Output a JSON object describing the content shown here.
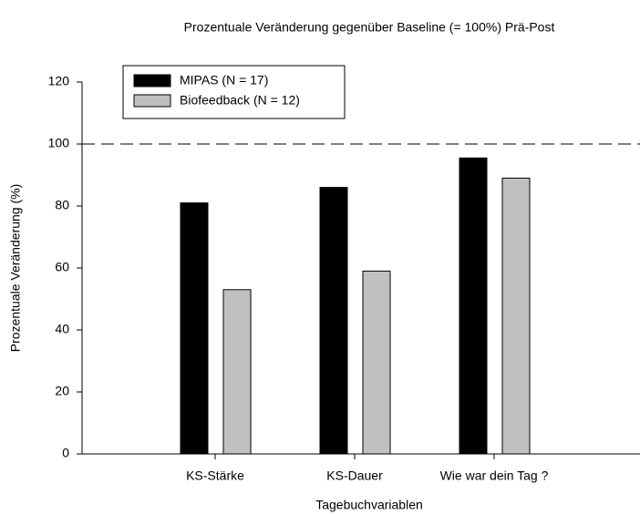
{
  "chart_data": {
    "type": "bar",
    "title": "Prozentuale Veränderung gegenüber Baseline (= 100%) Prä-Post",
    "x_label": "Tagebuchvariablen",
    "y_label": "Prozentuale Veränderung (%)",
    "categories": [
      "KS-Stärke",
      "KS-Dauer",
      "Wie war dein Tag ?"
    ],
    "series": [
      {
        "name": "MIPAS (N = 17)",
        "color": "#000000",
        "values": [
          81,
          86,
          95.5
        ]
      },
      {
        "name": "Biofeedback (N = 12)",
        "color": "#c0c0c0",
        "values": [
          53,
          59,
          89
        ]
      }
    ],
    "ylim": [
      0,
      120
    ],
    "yticks": [
      0,
      20,
      40,
      60,
      80,
      100,
      120
    ],
    "reference_line": 100,
    "legend": "upper left"
  }
}
